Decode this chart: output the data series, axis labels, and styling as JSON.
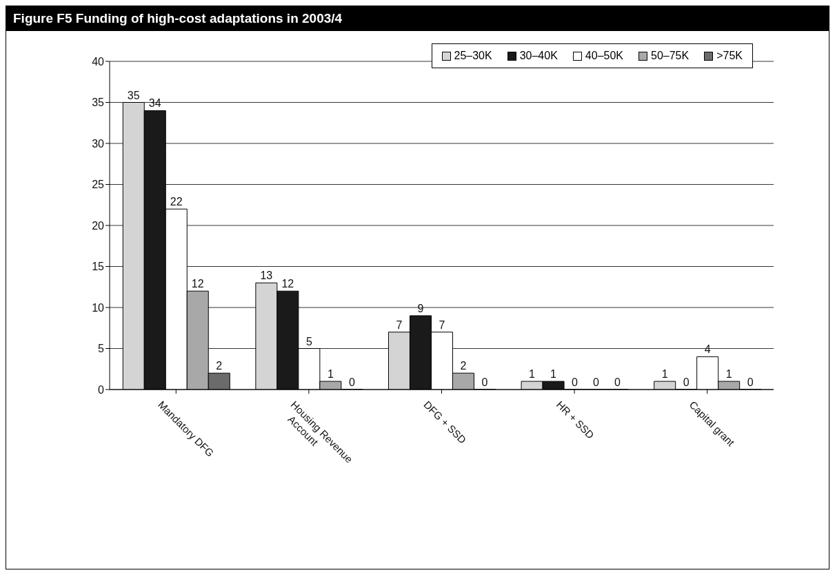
{
  "chart_data": {
    "type": "bar",
    "title": "Figure F5 Funding of high-cost adaptations in 2003/4",
    "categories": [
      "Mandatory DFG",
      "Housing Revenue Account",
      "DFG + SSD",
      "HR + SSD",
      "Capital grant"
    ],
    "series": [
      {
        "name": "25–30K",
        "color": "#d4d4d4",
        "values": [
          35,
          13,
          7,
          1,
          1
        ]
      },
      {
        "name": "30–40K",
        "color": "#1a1a1a",
        "values": [
          34,
          12,
          9,
          1,
          0
        ]
      },
      {
        "name": "40–50K",
        "color": "#ffffff",
        "values": [
          22,
          5,
          7,
          0,
          4
        ]
      },
      {
        "name": "50–75K",
        "color": "#a8a8a8",
        "values": [
          12,
          1,
          2,
          0,
          1
        ]
      },
      {
        "name": ">75K",
        "color": "#6b6b6b",
        "values": [
          2,
          0,
          0,
          0,
          0
        ]
      }
    ],
    "ylim": [
      0,
      40
    ],
    "yticks": [
      0,
      5,
      10,
      15,
      20,
      25,
      30,
      35,
      40
    ],
    "grid": "y",
    "legend": "top right",
    "data_labels": true
  }
}
